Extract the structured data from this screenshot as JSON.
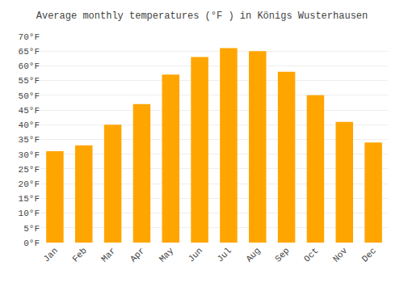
{
  "chart_data": {
    "type": "bar",
    "title": "Average monthly temperatures (°F ) in Königs Wusterhausen",
    "categories": [
      "Jan",
      "Feb",
      "Mar",
      "Apr",
      "May",
      "Jun",
      "Jul",
      "Aug",
      "Sep",
      "Oct",
      "Nov",
      "Dec"
    ],
    "values": [
      31,
      33,
      40,
      47,
      57,
      63,
      66,
      65,
      58,
      50,
      41,
      34
    ],
    "color": "#FFA500",
    "ylim": [
      0,
      70
    ],
    "yticks": [
      {
        "value": 0,
        "label": "0°F"
      },
      {
        "value": 5,
        "label": "5°F"
      },
      {
        "value": 10,
        "label": "10°F"
      },
      {
        "value": 15,
        "label": "15°F"
      },
      {
        "value": 20,
        "label": "20°F"
      },
      {
        "value": 25,
        "label": "25°F"
      },
      {
        "value": 30,
        "label": "30°F"
      },
      {
        "value": 35,
        "label": "35°F"
      },
      {
        "value": 40,
        "label": "40°F"
      },
      {
        "value": 45,
        "label": "45°F"
      },
      {
        "value": 50,
        "label": "50°F"
      },
      {
        "value": 55,
        "label": "55°F"
      },
      {
        "value": 60,
        "label": "60°F"
      },
      {
        "value": 65,
        "label": "65°F"
      },
      {
        "value": 70,
        "label": "70°F"
      }
    ],
    "grid": true
  }
}
